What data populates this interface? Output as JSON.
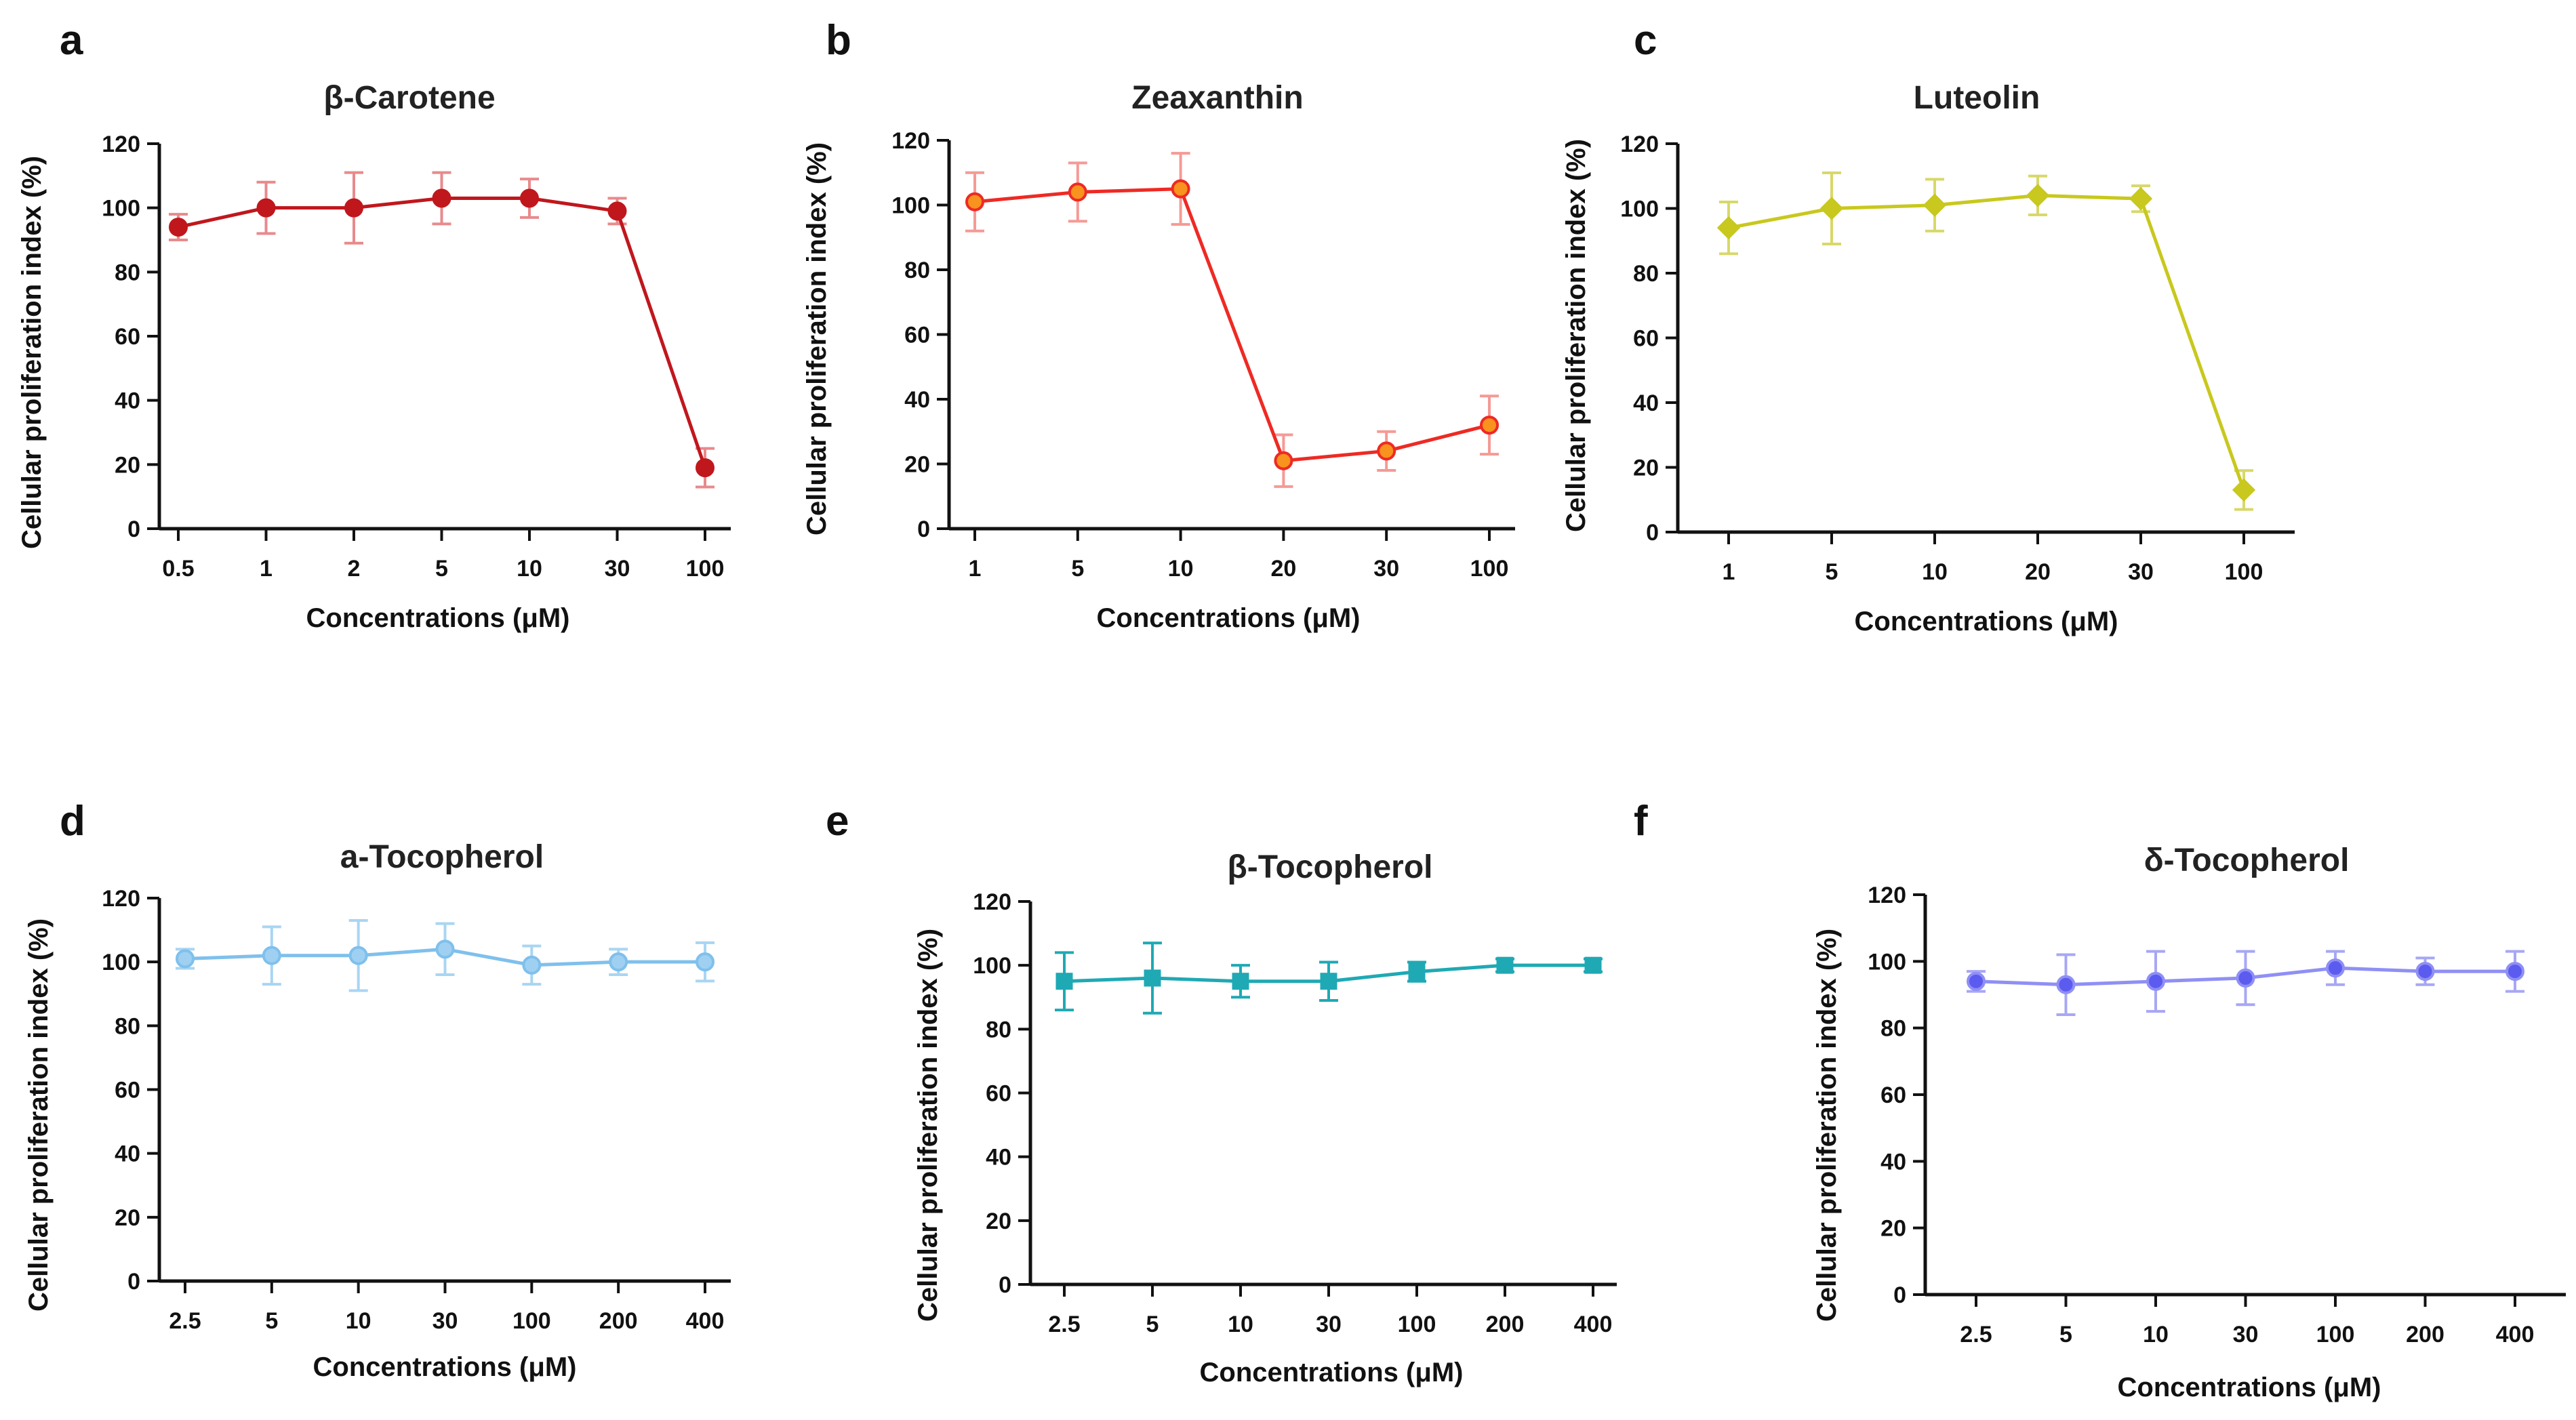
{
  "chart_data": [
    {
      "id": "a",
      "panel_label": "a",
      "type": "line",
      "title": "β-Carotene",
      "xlabel": "Concentrations (μM)",
      "ylabel": "Cellular proliferation index (%)",
      "ylim": [
        0,
        120
      ],
      "yticks": [
        "0",
        "20",
        "40",
        "60",
        "80",
        "100",
        "120"
      ],
      "categories": [
        "0.5",
        "1",
        "2",
        "5",
        "10",
        "30",
        "100"
      ],
      "values": [
        94,
        100,
        100,
        103,
        103,
        99,
        19
      ],
      "errors": [
        4,
        8,
        11,
        8,
        6,
        4,
        6
      ],
      "marker": "circle",
      "color": "#c0171d",
      "marker_fill": "#c0171d",
      "error_color": "#e88a8c"
    },
    {
      "id": "b",
      "panel_label": "b",
      "type": "line",
      "title": "Zeaxanthin",
      "xlabel": "Concentrations (μM)",
      "ylabel": "Cellular proliferation index (%)",
      "ylim": [
        0,
        120
      ],
      "yticks": [
        "0",
        "20",
        "40",
        "60",
        "80",
        "100",
        "120"
      ],
      "categories": [
        "1",
        "5",
        "10",
        "20",
        "30",
        "100"
      ],
      "values": [
        101,
        104,
        105,
        21,
        24,
        32
      ],
      "errors": [
        9,
        9,
        11,
        8,
        6,
        9
      ],
      "marker": "circle",
      "color": "#ee2a24",
      "marker_fill": "#f7931e",
      "error_color": "#f59a95"
    },
    {
      "id": "c",
      "panel_label": "c",
      "type": "line",
      "title": "Luteolin",
      "xlabel": "Concentrations (μM)",
      "ylabel": "Cellular proliferation index (%)",
      "ylim": [
        0,
        120
      ],
      "yticks": [
        "0",
        "20",
        "40",
        "60",
        "80",
        "100",
        "120"
      ],
      "categories": [
        "1",
        "5",
        "10",
        "20",
        "30",
        "100"
      ],
      "values": [
        94,
        100,
        101,
        104,
        103,
        13
      ],
      "errors": [
        8,
        11,
        8,
        6,
        4,
        6
      ],
      "marker": "diamond",
      "color": "#c8c81e",
      "marker_fill": "#c8c81e",
      "error_color": "#d8d86a"
    },
    {
      "id": "d",
      "panel_label": "d",
      "type": "line",
      "title": "a-Tocopherol",
      "xlabel": "Concentrations (μM)",
      "ylabel": "Cellular proliferation index (%)",
      "ylim": [
        0,
        120
      ],
      "yticks": [
        "0",
        "20",
        "40",
        "60",
        "80",
        "100",
        "120"
      ],
      "categories": [
        "2.5",
        "5",
        "10",
        "30",
        "100",
        "200",
        "400"
      ],
      "values": [
        101,
        102,
        102,
        104,
        99,
        100,
        100
      ],
      "errors": [
        3,
        9,
        11,
        8,
        6,
        4,
        6
      ],
      "marker": "circle",
      "color": "#7fc0ec",
      "marker_fill": "#9fd0f2",
      "error_color": "#a9d5f3"
    },
    {
      "id": "e",
      "panel_label": "e",
      "type": "line",
      "title": "β-Tocopherol",
      "xlabel": "Concentrations (μM)",
      "ylabel": "Cellular proliferation index (%)",
      "ylim": [
        0,
        120
      ],
      "yticks": [
        "0",
        "20",
        "40",
        "60",
        "80",
        "100",
        "120"
      ],
      "categories": [
        "2.5",
        "5",
        "10",
        "30",
        "100",
        "200",
        "400"
      ],
      "values": [
        95,
        96,
        95,
        95,
        98,
        100,
        100
      ],
      "errors": [
        9,
        11,
        5,
        6,
        3,
        2,
        2
      ],
      "marker": "square",
      "color": "#1fa9b4",
      "marker_fill": "#1fa9b4",
      "error_color": "#1fa9b4"
    },
    {
      "id": "f",
      "panel_label": "f",
      "type": "line",
      "title": "δ-Tocopherol",
      "xlabel": "Concentrations (μM)",
      "ylabel": "Cellular proliferation index (%)",
      "ylim": [
        0,
        120
      ],
      "yticks": [
        "0",
        "20",
        "40",
        "60",
        "80",
        "100",
        "120"
      ],
      "categories": [
        "2.5",
        "5",
        "10",
        "30",
        "100",
        "200",
        "400"
      ],
      "values": [
        94,
        93,
        94,
        95,
        98,
        97,
        97
      ],
      "errors": [
        3,
        9,
        9,
        8,
        5,
        4,
        6
      ],
      "marker": "circle",
      "color": "#8f8ff5",
      "marker_fill": "#5b5bf0",
      "error_color": "#a7a7f5"
    }
  ]
}
